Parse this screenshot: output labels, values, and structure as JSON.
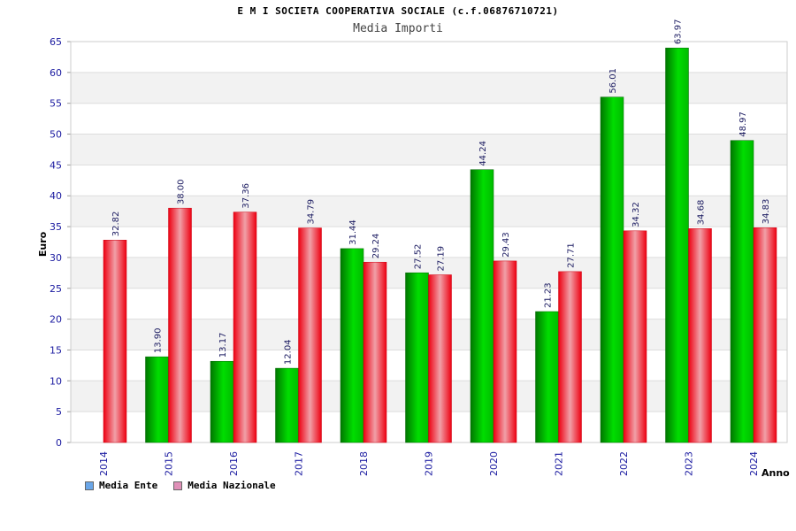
{
  "chart_data": {
    "type": "bar",
    "title": "E M I SOCIETA COOPERATIVA SOCIALE (c.f.06876710721)",
    "subtitle": "Media Importi",
    "ylabel": "Euro",
    "xlabel": "Anno",
    "ylim": [
      0,
      65
    ],
    "yticks": [
      0,
      5,
      10,
      15,
      20,
      25,
      30,
      35,
      40,
      45,
      50,
      55,
      60,
      65
    ],
    "grid": true,
    "legend_position": "bottom-left",
    "categories": [
      "2014",
      "2015",
      "2016",
      "2017",
      "2018",
      "2019",
      "2020",
      "2021",
      "2022",
      "2023",
      "2024"
    ],
    "series": [
      {
        "name": "Media Ente",
        "color": "#00aa00",
        "legend_color": "#6aa6e8",
        "values": [
          null,
          13.9,
          13.17,
          12.04,
          31.44,
          27.52,
          44.24,
          21.23,
          56.01,
          63.97,
          48.97
        ],
        "labels": [
          "",
          "13.90",
          "13.17",
          "12.04",
          "31.44",
          "27.52",
          "44.24",
          "21.23",
          "56.01",
          "63.97",
          "48.97"
        ]
      },
      {
        "name": "Media Nazionale",
        "color": "#ee1122",
        "legend_color": "#e090b8",
        "values": [
          32.82,
          38.0,
          37.36,
          34.79,
          29.24,
          27.19,
          29.43,
          27.71,
          34.32,
          34.68,
          34.83
        ],
        "labels": [
          "32.82",
          "38.00",
          "37.36",
          "34.79",
          "29.24",
          "27.19",
          "29.43",
          "27.71",
          "34.32",
          "34.68",
          "34.83"
        ]
      }
    ]
  }
}
